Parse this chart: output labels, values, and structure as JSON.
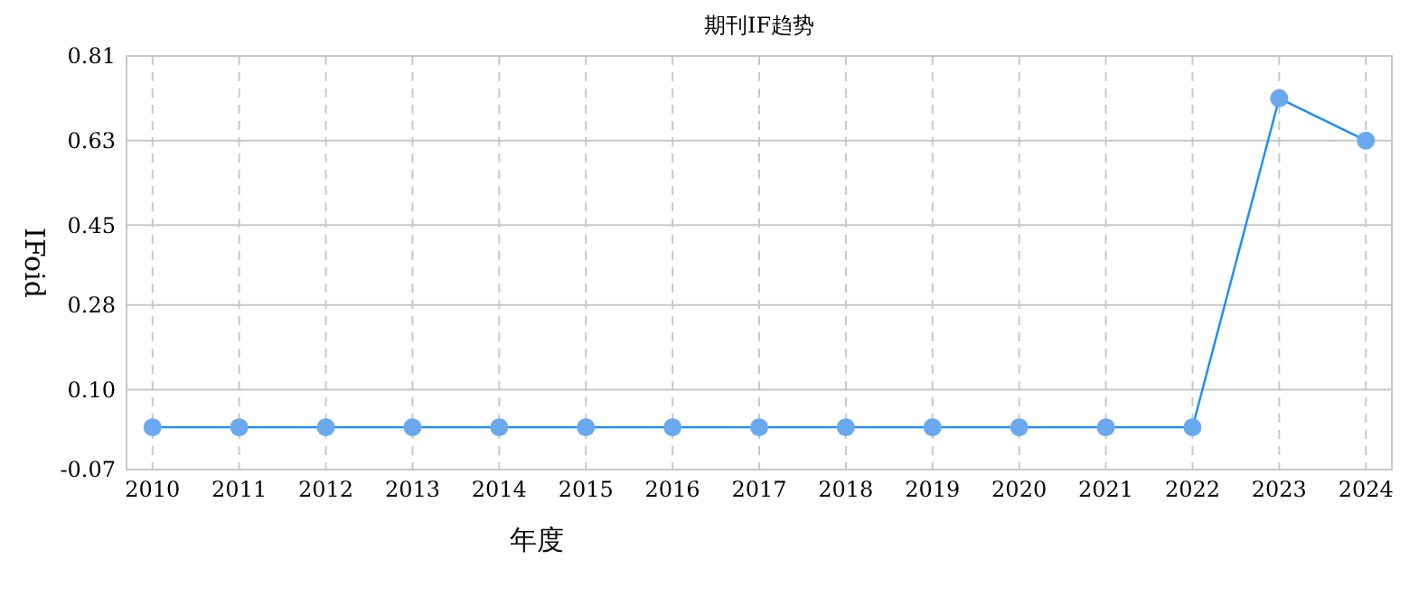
{
  "chart_data": {
    "type": "line",
    "title": "期刊IF趋势",
    "xlabel": "年度",
    "ylabel": "IFoid",
    "categories": [
      "2010",
      "2011",
      "2012",
      "2013",
      "2014",
      "2015",
      "2016",
      "2017",
      "2018",
      "2019",
      "2020",
      "2021",
      "2022",
      "2023",
      "2024"
    ],
    "series": [
      {
        "color": "#1a8cff",
        "values": [
          0.02,
          0.02,
          0.02,
          0.02,
          0.02,
          0.02,
          0.02,
          0.02,
          0.02,
          0.02,
          0.02,
          0.02,
          0.02,
          0.72,
          0.63
        ]
      }
    ],
    "ylim": [
      -0.07,
      0.81
    ],
    "yticks": [
      {
        "value": -0.07,
        "label": "-0.07"
      },
      {
        "value": 0.1,
        "label": "0.10"
      },
      {
        "value": 0.28,
        "label": "0.28"
      },
      {
        "value": 0.45,
        "label": "0.45"
      },
      {
        "value": 0.63,
        "label": "0.63"
      },
      {
        "value": 0.81,
        "label": "0.81"
      }
    ],
    "grid": true,
    "marker": "circle"
  }
}
